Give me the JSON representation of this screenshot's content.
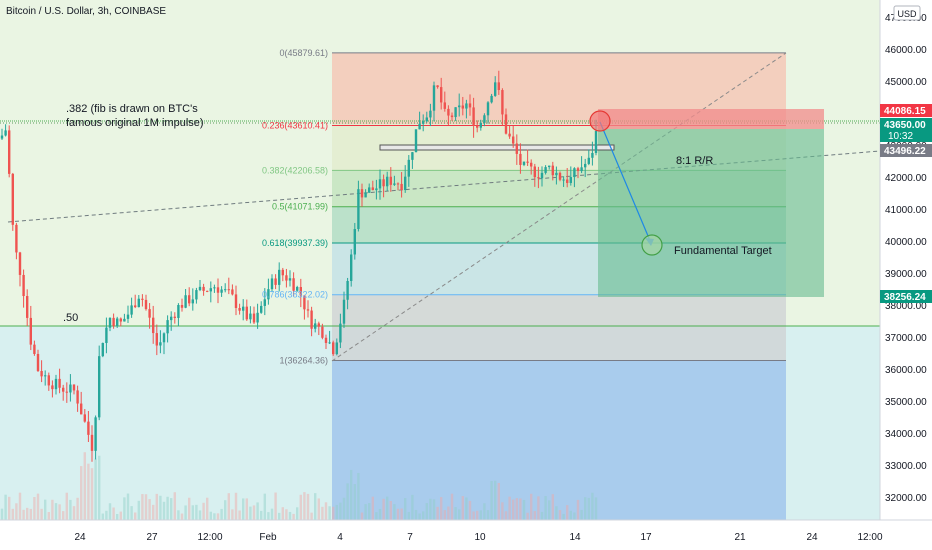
{
  "header": {
    "title": "Bitcoin / U.S. Dollar, 3h, COINBASE",
    "currency_button": "USD"
  },
  "chart_data": {
    "type": "candlestick",
    "symbol": "Bitcoin / U.S. Dollar",
    "interval": "3h",
    "exchange": "COINBASE",
    "y_axis": {
      "range": [
        31400,
        47600
      ],
      "ticks": [
        "32000.00",
        "33000.00",
        "34000.00",
        "35000.00",
        "36000.00",
        "37000.00",
        "38000.00",
        "39000.00",
        "40000.00",
        "41000.00",
        "42000.00",
        "43000.00",
        "44000.00",
        "45000.00",
        "46000.00",
        "47000.00"
      ]
    },
    "x_axis": {
      "ticks": [
        "24",
        "27",
        "12:00",
        "Feb",
        "4",
        "7",
        "10",
        "14",
        "17",
        "21",
        "24",
        "12:00"
      ]
    },
    "price_labels": [
      {
        "value": "44086.15",
        "color": "#f23645"
      },
      {
        "value": "43650.00",
        "subtext": "10:32",
        "color": "#089981"
      },
      {
        "value": "43496.22",
        "color": "#787b86"
      },
      {
        "value": "38256.24",
        "color": "#089981"
      }
    ],
    "fib_levels": [
      {
        "ratio": "0",
        "price": 45879.61,
        "label": "0(45879.61)",
        "color": "#787b86"
      },
      {
        "ratio": "0.236",
        "price": 43610.41,
        "label": "0.236(43610.41)",
        "color": "#f23645"
      },
      {
        "ratio": "0.382",
        "price": 42206.58,
        "label": "0.382(42206.58)",
        "color": "#81c784"
      },
      {
        "ratio": "0.5",
        "price": 41071.99,
        "label": "0.5(41071.99)",
        "color": "#4caf50"
      },
      {
        "ratio": "0.618",
        "price": 39937.39,
        "label": "0.618(39937.39)",
        "color": "#089981"
      },
      {
        "ratio": "0.786",
        "price": 38322.02,
        "label": "0.786(38322.02)",
        "color": "#64b5f6"
      },
      {
        "ratio": "1",
        "price": 36264.36,
        "label": "1(36264.36)",
        "color": "#787b86"
      }
    ],
    "annotations": {
      "fib_note_line1": ".382 (fib is drawn on BTC's",
      "fib_note_line2": "famous original 1M impulse)",
      "half_level_label": ".50",
      "risk_reward": "8:1 R/R",
      "target": "Fundamental Target"
    },
    "position": {
      "entry": 43650.0,
      "stop": 44086.15,
      "target": 38256.24
    },
    "levels": {
      "big_fib_382": 43700,
      "big_fib_50": 37340,
      "resistance_box": 42950,
      "trend_start": 40550,
      "trend_end": 43496.22
    }
  }
}
